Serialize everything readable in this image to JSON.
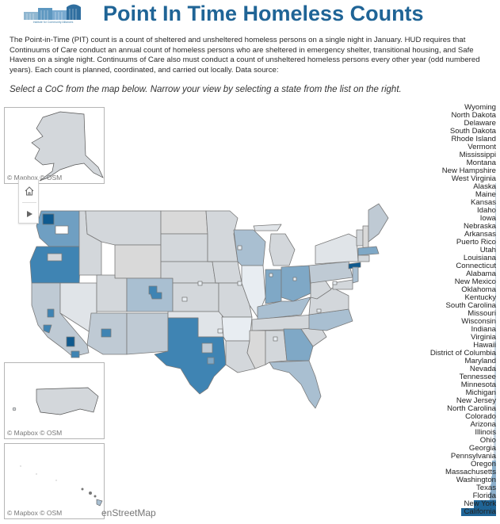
{
  "header": {
    "logo_text": "Institute for Community Alliances",
    "title": "Point In Time Homeless Counts"
  },
  "description": "The Point-in-Time (PIT) count is a count of sheltered and unsheltered homeless persons on a single night in January. HUD requires that Continuums of Care conduct an annual count of homeless persons who are sheltered in emergency shelter, transitional housing, and Safe Havens on a single night. Continuums of Care also must conduct a count of unsheltered homeless persons every other year (odd numbered years). Each count is planned, coordinated, and carried out locally.  Data source:",
  "instruction": "Select a CoC from the map below. Narrow your view by selecting a state from the list on the right.",
  "map": {
    "insets": [
      {
        "name": "Alaska",
        "attribution": "© Mapbox  © OSM"
      },
      {
        "name": "Puerto Rico",
        "attribution": "© Mapbox  © OSM"
      },
      {
        "name": "Hawaii",
        "attribution": "© Mapbox  © OSM"
      }
    ],
    "controls": {
      "home_icon": "home-icon",
      "play_icon": "play-icon"
    },
    "osm_credit": "enStreetMap",
    "colors": {
      "lowest": "#e8edf2",
      "low": "#d3d7db",
      "mid_low": "#bfcad4",
      "mid": "#a9bfd1",
      "mid_high": "#7fa8c6",
      "high": "#3f84b3",
      "highest": "#0f5a8f",
      "border": "#777777"
    }
  },
  "state_list": {
    "bar_color_light": "#c5d4e0",
    "bar_color_mid": "#8cb0cc",
    "bar_color_dark": "#1f6496",
    "items": [
      {
        "label": "Wyoming",
        "bar": 0
      },
      {
        "label": "North Dakota",
        "bar": 0
      },
      {
        "label": "Delaware",
        "bar": 0
      },
      {
        "label": "South Dakota",
        "bar": 0
      },
      {
        "label": "Rhode Island",
        "bar": 0
      },
      {
        "label": "Vermont",
        "bar": 0
      },
      {
        "label": "Mississippi",
        "bar": 0
      },
      {
        "label": "Montana",
        "bar": 0
      },
      {
        "label": "New Hampshire",
        "bar": 0
      },
      {
        "label": "West Virginia",
        "bar": 0
      },
      {
        "label": "Alaska",
        "bar": 1
      },
      {
        "label": "Maine",
        "bar": 1
      },
      {
        "label": "Kansas",
        "bar": 1
      },
      {
        "label": "Idaho",
        "bar": 1
      },
      {
        "label": "Iowa",
        "bar": 1
      },
      {
        "label": "Nebraska",
        "bar": 1
      },
      {
        "label": "Arkansas",
        "bar": 1
      },
      {
        "label": "Puerto Rico",
        "bar": 1
      },
      {
        "label": "Utah",
        "bar": 1
      },
      {
        "label": "Louisiana",
        "bar": 1
      },
      {
        "label": "Connecticut",
        "bar": 1
      },
      {
        "label": "Alabama",
        "bar": 1
      },
      {
        "label": "New Mexico",
        "bar": 1
      },
      {
        "label": "Oklahoma",
        "bar": 1
      },
      {
        "label": "Kentucky",
        "bar": 1
      },
      {
        "label": "South Carolina",
        "bar": 1
      },
      {
        "label": "Missouri",
        "bar": 1
      },
      {
        "label": "Wisconsin",
        "bar": 1
      },
      {
        "label": "Indiana",
        "bar": 1
      },
      {
        "label": "Virginia",
        "bar": 1
      },
      {
        "label": "Hawaii",
        "bar": 2
      },
      {
        "label": "District of Columbia",
        "bar": 2
      },
      {
        "label": "Maryland",
        "bar": 1
      },
      {
        "label": "Nevada",
        "bar": 2
      },
      {
        "label": "Tennessee",
        "bar": 2
      },
      {
        "label": "Minnesota",
        "bar": 2
      },
      {
        "label": "Michigan",
        "bar": 2
      },
      {
        "label": "New Jersey",
        "bar": 2
      },
      {
        "label": "North Carolina",
        "bar": 2
      },
      {
        "label": "Colorado",
        "bar": 2
      },
      {
        "label": "Arizona",
        "bar": 2
      },
      {
        "label": "Illinois",
        "bar": 3
      },
      {
        "label": "Ohio",
        "bar": 3
      },
      {
        "label": "Georgia",
        "bar": 3
      },
      {
        "label": "Pennsylvania",
        "bar": 3
      },
      {
        "label": "Oregon",
        "bar": 5
      },
      {
        "label": "Massachusetts",
        "bar": 5
      },
      {
        "label": "Washington",
        "bar": 6
      },
      {
        "label": "Texas",
        "bar": 7
      },
      {
        "label": "Florida",
        "bar": 8
      },
      {
        "label": "New York",
        "bar": 28
      },
      {
        "label": "California",
        "bar": 44
      }
    ]
  }
}
